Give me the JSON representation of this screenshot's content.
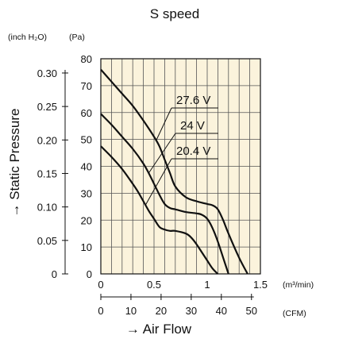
{
  "chart_data": {
    "type": "line",
    "title": "S speed",
    "xlabel": "→ Air Flow",
    "ylabel": "→ Static Pressure",
    "x_unit": "(m³/min)",
    "x2_unit": "(CFM)",
    "y_unit": "(Pa)",
    "y2_unit": "(inch H₂O)",
    "xlim": [
      0,
      1.5
    ],
    "ylim": [
      0,
      80
    ],
    "x_ticks": [
      {
        "value": 0,
        "label": "0"
      },
      {
        "value": 0.5,
        "label": "0.5"
      },
      {
        "value": 1,
        "label": "1"
      },
      {
        "value": 1.5,
        "label": "1.5"
      }
    ],
    "y_ticks": [
      {
        "value": 0,
        "label": "0"
      },
      {
        "value": 10,
        "label": "10"
      },
      {
        "value": 20,
        "label": "20"
      },
      {
        "value": 30,
        "label": "30"
      },
      {
        "value": 40,
        "label": "40"
      },
      {
        "value": 50,
        "label": "50"
      },
      {
        "value": 60,
        "label": "60"
      },
      {
        "value": 70,
        "label": "70"
      },
      {
        "value": 80,
        "label": "80"
      }
    ],
    "y2_ticks": [
      {
        "pa": 0,
        "label": "0"
      },
      {
        "pa": 12.45,
        "label": "0.05"
      },
      {
        "pa": 24.9,
        "label": "0.10"
      },
      {
        "pa": 37.35,
        "label": "0.15"
      },
      {
        "pa": 49.8,
        "label": "0.20"
      },
      {
        "pa": 62.25,
        "label": "0.25"
      },
      {
        "pa": 74.7,
        "label": "0.30"
      }
    ],
    "x2_ticks": [
      {
        "cfm": 0,
        "label": "0"
      },
      {
        "cfm": 10,
        "label": "10"
      },
      {
        "cfm": 20,
        "label": "20"
      },
      {
        "cfm": 30,
        "label": "30"
      },
      {
        "cfm": 40,
        "label": "40"
      },
      {
        "cfm": 50,
        "label": "50"
      }
    ],
    "cfm_per_m3min": 35.31,
    "grid": true,
    "series": [
      {
        "name": "27.6 V",
        "x": [
          0,
          0.1,
          0.2,
          0.3,
          0.4,
          0.5,
          0.55,
          0.6,
          0.65,
          0.7,
          0.8,
          0.9,
          1.0,
          1.05,
          1.1,
          1.15,
          1.2,
          1.3,
          1.38
        ],
        "y": [
          76,
          71.5,
          67,
          62.5,
          57,
          51,
          47.5,
          42.5,
          37.5,
          32.5,
          28.5,
          27,
          26,
          25.5,
          24,
          20,
          15,
          6,
          0
        ]
      },
      {
        "name": "24 V",
        "x": [
          0,
          0.1,
          0.2,
          0.3,
          0.4,
          0.45,
          0.5,
          0.55,
          0.6,
          0.65,
          0.7,
          0.8,
          0.9,
          0.95,
          1.0,
          1.05,
          1.1,
          1.15,
          1.2
        ],
        "y": [
          59.5,
          55.5,
          51,
          46.5,
          41,
          37.5,
          33.5,
          29.5,
          26,
          24.5,
          24,
          23,
          22.5,
          22,
          20.5,
          17,
          12,
          6,
          0
        ]
      },
      {
        "name": "20.4 V",
        "x": [
          0,
          0.1,
          0.2,
          0.3,
          0.35,
          0.4,
          0.45,
          0.5,
          0.55,
          0.6,
          0.65,
          0.7,
          0.8,
          0.85,
          0.9,
          0.95,
          1.0,
          1.05,
          1.1
        ],
        "y": [
          47.5,
          43.5,
          39,
          33.5,
          30.5,
          27,
          23.5,
          20.5,
          17.5,
          16.5,
          16,
          16,
          15,
          13.5,
          11,
          8,
          5,
          2,
          0
        ]
      }
    ],
    "line_color": "#111111",
    "background_color": "#fbf3dc",
    "grid_color": "#555555"
  }
}
